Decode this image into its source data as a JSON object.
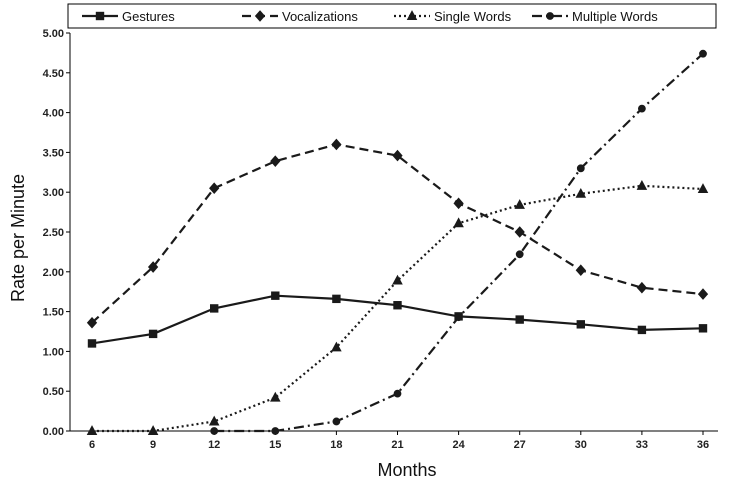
{
  "chart_data": {
    "type": "line",
    "xlabel": "Months",
    "ylabel": "Rate per Minute",
    "categories": [
      "6",
      "9",
      "12",
      "15",
      "18",
      "21",
      "24",
      "27",
      "30",
      "33",
      "36"
    ],
    "y_ticks": [
      "0.00",
      "0.50",
      "1.00",
      "1.50",
      "2.00",
      "2.50",
      "3.00",
      "3.50",
      "4.00",
      "4.50",
      "5.00"
    ],
    "ylim": [
      0,
      5
    ],
    "grid": false,
    "legend_position": "top",
    "series": [
      {
        "name": "Gestures",
        "values": [
          1.1,
          1.22,
          1.54,
          1.7,
          1.66,
          1.58,
          1.44,
          1.4,
          1.34,
          1.27,
          1.29
        ],
        "dash": "solid",
        "marker": "square"
      },
      {
        "name": "Vocalizations",
        "values": [
          1.36,
          2.06,
          3.05,
          3.39,
          3.6,
          3.46,
          2.86,
          2.5,
          2.02,
          1.8,
          1.72
        ],
        "dash": "dashed",
        "marker": "diamond"
      },
      {
        "name": "Single Words",
        "values": [
          0.0,
          0.0,
          0.12,
          0.42,
          1.05,
          1.89,
          2.61,
          2.84,
          2.98,
          3.08,
          3.04
        ],
        "dash": "dotted",
        "marker": "triangle"
      },
      {
        "name": "Multiple Words",
        "values": [
          null,
          null,
          0.0,
          0.0,
          0.12,
          0.47,
          1.43,
          2.22,
          3.3,
          4.05,
          4.74
        ],
        "dash": "dash-dot",
        "marker": "circle"
      }
    ]
  }
}
